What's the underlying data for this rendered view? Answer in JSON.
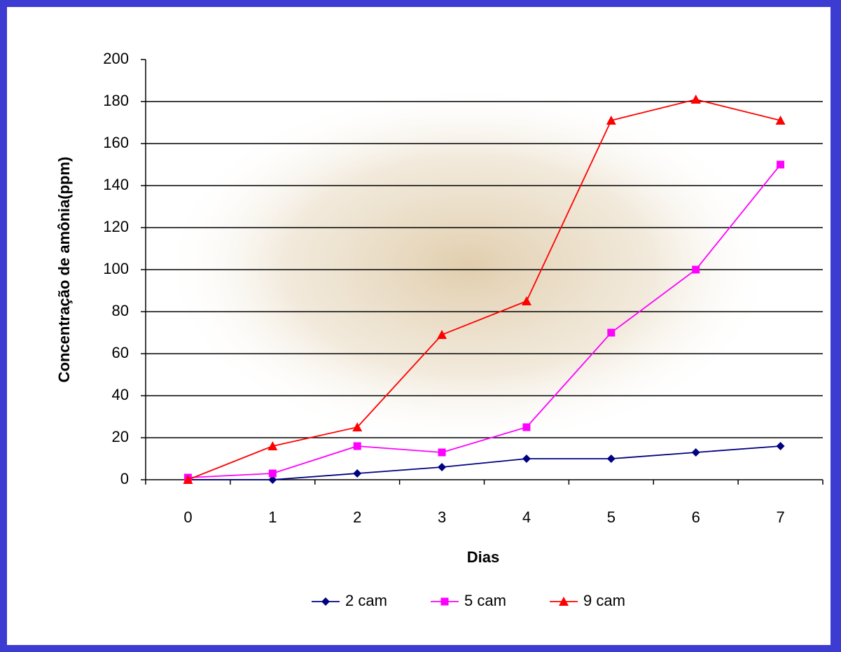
{
  "chart_data": {
    "type": "line",
    "x_label": "Dias",
    "y_label": "Concentração de amônia(ppm)",
    "categories": [
      "0",
      "1",
      "2",
      "3",
      "4",
      "5",
      "6",
      "7"
    ],
    "series": [
      {
        "name": "2 cam",
        "color": "#000080",
        "marker": "diamond",
        "values": [
          0,
          0,
          3,
          6,
          10,
          10,
          13,
          16
        ]
      },
      {
        "name": "5 cam",
        "color": "#ff00ff",
        "marker": "square",
        "values": [
          1,
          3,
          16,
          13,
          25,
          70,
          100,
          150
        ]
      },
      {
        "name": "9 cam",
        "color": "#ff0000",
        "marker": "triangle",
        "values": [
          0,
          16,
          25,
          69,
          85,
          171,
          181,
          171
        ]
      }
    ],
    "ylim": [
      0,
      200
    ],
    "yticks": [
      0,
      20,
      40,
      60,
      80,
      100,
      120,
      140,
      160,
      180,
      200
    ],
    "grid": true,
    "legend": "bottom"
  }
}
